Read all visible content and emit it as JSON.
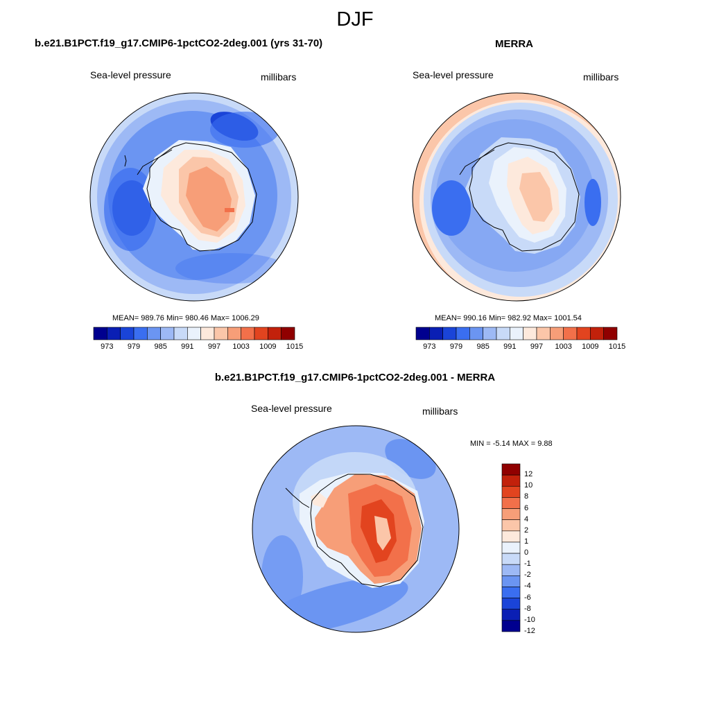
{
  "figure": {
    "season": "DJF",
    "diff_title": "b.e21.B1PCT.f19_g17.CMIP6-1pctCO2-2deg.001 - MERRA"
  },
  "colors": {
    "palette": [
      "#00008f",
      "#0a1fb4",
      "#1a44d8",
      "#3a6ef0",
      "#6b95f2",
      "#9db9f5",
      "#c8daf8",
      "#eaf2fc",
      "#fde9dc",
      "#fbc6a9",
      "#f79e78",
      "#f2704a",
      "#e2441f",
      "#c2210b",
      "#900000"
    ],
    "coast": "#000000"
  },
  "panels": [
    {
      "id": "model",
      "title": "b.e21.B1PCT.f19_g17.CMIP6-1pctCO2-2deg.001 (yrs 31-70)",
      "variable": "Sea-level pressure",
      "units": "millibars",
      "stats": "MEAN= 989.76  Min= 980.46  Max= 1006.29",
      "colorbar_labels": [
        "973",
        "979",
        "985",
        "991",
        "997",
        "1003",
        "1009",
        "1015"
      ]
    },
    {
      "id": "obs",
      "title": "MERRA",
      "variable": "Sea-level pressure",
      "units": "millibars",
      "stats": "MEAN= 990.16  Min= 982.92  Max= 1001.54",
      "colorbar_labels": [
        "973",
        "979",
        "985",
        "991",
        "997",
        "1003",
        "1009",
        "1015"
      ]
    }
  ],
  "difference": {
    "variable": "Sea-level pressure",
    "units": "millibars",
    "stats": "MIN =  -5.14 MAX =   9.88",
    "colorbar_labels": [
      "12",
      "10",
      "8",
      "6",
      "4",
      "2",
      "1",
      "0",
      "-1",
      "-2",
      "-4",
      "-6",
      "-8",
      "-10",
      "-12"
    ]
  }
}
